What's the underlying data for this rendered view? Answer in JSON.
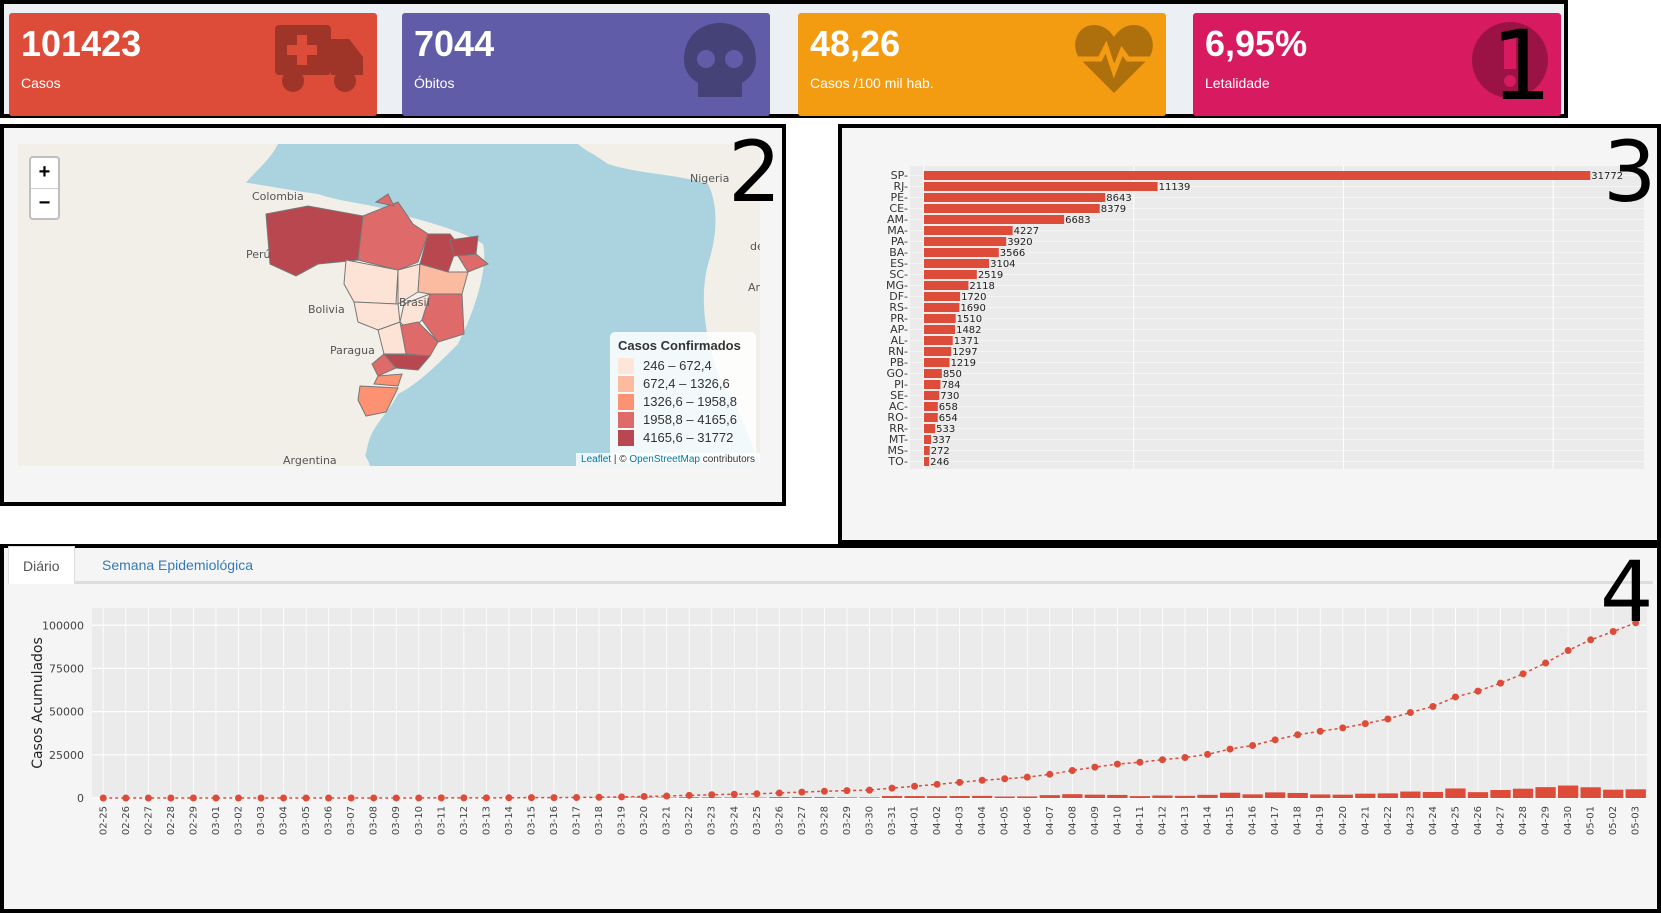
{
  "annotations": [
    "1",
    "2",
    "3",
    "4"
  ],
  "kpis": [
    {
      "value": "101423",
      "label": "Casos",
      "color": "#dd4b39",
      "icon": "ambulance-icon"
    },
    {
      "value": "7044",
      "label": "Óbitos",
      "color": "#605ca8",
      "icon": "skull-icon"
    },
    {
      "value": "48,26",
      "label": "Casos /100 mil hab.",
      "color": "#f39c12",
      "icon": "heartbeat-icon"
    },
    {
      "value": "6,95%",
      "label": "Letalidade",
      "color": "#d81b60",
      "icon": "exclamation-icon"
    }
  ],
  "map": {
    "zoom_in": "+",
    "zoom_out": "−",
    "labels": {
      "colombia": "Colombia",
      "peru": "Perú",
      "bolivia": "Bolivia",
      "paraguay": "Paragua",
      "argentina": "Argentina",
      "nigeria": "Nigeria",
      "brasil": "Brasil",
      "angola": "An",
      "de": "de"
    },
    "legend": {
      "title": "Casos Confirmados",
      "items": [
        {
          "label": "246 – 672,4",
          "color": "#fee5d9"
        },
        {
          "label": "672,4 – 1326,6",
          "color": "#fcbba1"
        },
        {
          "label": "1326,6 – 1958,8",
          "color": "#fc9272"
        },
        {
          "label": "1958,8 – 4165,6",
          "color": "#de6a6a"
        },
        {
          "label": "4165,6 – 31772",
          "color": "#b9474f"
        }
      ]
    },
    "attribution": {
      "leaflet": "Leaflet",
      "sep": " | © ",
      "osm": "OpenStreetMap",
      "rest": " contributors"
    }
  },
  "tabs": [
    {
      "label": "Diário",
      "active": true
    },
    {
      "label": "Semana Epidemiológica",
      "active": false
    }
  ],
  "chart_data": [
    {
      "type": "bar",
      "orientation": "horizontal",
      "categories": [
        "SP",
        "RJ",
        "PE",
        "CE",
        "AM",
        "MA",
        "PA",
        "BA",
        "ES",
        "SC",
        "MG",
        "DF",
        "RS",
        "PR",
        "AP",
        "AL",
        "RN",
        "PB",
        "GO",
        "PI",
        "SE",
        "AC",
        "RO",
        "RR",
        "MT",
        "MS",
        "TO"
      ],
      "values": [
        31772,
        11139,
        8643,
        8379,
        6683,
        4227,
        3920,
        3566,
        3104,
        2519,
        2118,
        1720,
        1690,
        1510,
        1482,
        1371,
        1297,
        1219,
        850,
        784,
        730,
        658,
        654,
        533,
        337,
        272,
        246
      ],
      "color": "#dd4b39",
      "grid": true
    },
    {
      "type": "line",
      "x": [
        "02-25",
        "02-26",
        "02-27",
        "02-28",
        "02-29",
        "03-01",
        "03-02",
        "03-03",
        "03-04",
        "03-05",
        "03-06",
        "03-07",
        "03-08",
        "03-09",
        "03-10",
        "03-11",
        "03-12",
        "03-13",
        "03-14",
        "03-15",
        "03-16",
        "03-17",
        "03-18",
        "03-19",
        "03-20",
        "03-21",
        "03-22",
        "03-23",
        "03-24",
        "03-25",
        "03-26",
        "03-27",
        "03-28",
        "03-29",
        "03-30",
        "03-31",
        "04-01",
        "04-02",
        "04-03",
        "04-04",
        "04-05",
        "04-06",
        "04-07",
        "04-08",
        "04-09",
        "04-10",
        "04-11",
        "04-12",
        "04-13",
        "04-14",
        "04-15",
        "04-16",
        "04-17",
        "04-18",
        "04-19",
        "04-20",
        "04-21",
        "04-22",
        "04-23",
        "04-24",
        "04-25",
        "04-26",
        "04-27",
        "04-28",
        "04-29",
        "04-30",
        "05-01",
        "05-02",
        "05-03"
      ],
      "ylabel": "Casos Acumulados",
      "ylim": [
        0,
        110000
      ],
      "yticks": [
        0,
        25000,
        50000,
        75000,
        100000
      ],
      "color": "#dd4b39",
      "grid": true,
      "series": [
        {
          "kind": "line",
          "values": [
            1,
            1,
            1,
            1,
            2,
            2,
            2,
            2,
            4,
            8,
            13,
            19,
            25,
            25,
            34,
            52,
            77,
            98,
            121,
            200,
            234,
            291,
            428,
            621,
            904,
            1128,
            1546,
            1891,
            2201,
            2433,
            2915,
            3417,
            3904,
            4256,
            4579,
            5717,
            6836,
            7910,
            9056,
            10278,
            11130,
            12056,
            13717,
            15927,
            17857,
            19638,
            20727,
            22169,
            23430,
            25262,
            28320,
            30425,
            33682,
            36599,
            38654,
            40581,
            43079,
            45757,
            49492,
            52995,
            58509,
            61888,
            66501,
            71886,
            78162,
            85380,
            91589,
            96396,
            101423
          ]
        },
        {
          "kind": "bar",
          "values": [
            1,
            0,
            0,
            0,
            1,
            0,
            0,
            0,
            2,
            4,
            5,
            6,
            6,
            0,
            9,
            18,
            25,
            21,
            23,
            79,
            34,
            57,
            137,
            193,
            283,
            224,
            418,
            345,
            310,
            232,
            482,
            502,
            487,
            352,
            323,
            1138,
            1119,
            1074,
            1146,
            1222,
            852,
            926,
            1661,
            2210,
            1930,
            1781,
            1089,
            1442,
            1261,
            1832,
            3058,
            2105,
            3257,
            2917,
            2055,
            1927,
            2498,
            2678,
            3735,
            3503,
            5514,
            3379,
            4613,
            5385,
            6276,
            7218,
            6209,
            4807,
            5027
          ]
        }
      ]
    }
  ]
}
